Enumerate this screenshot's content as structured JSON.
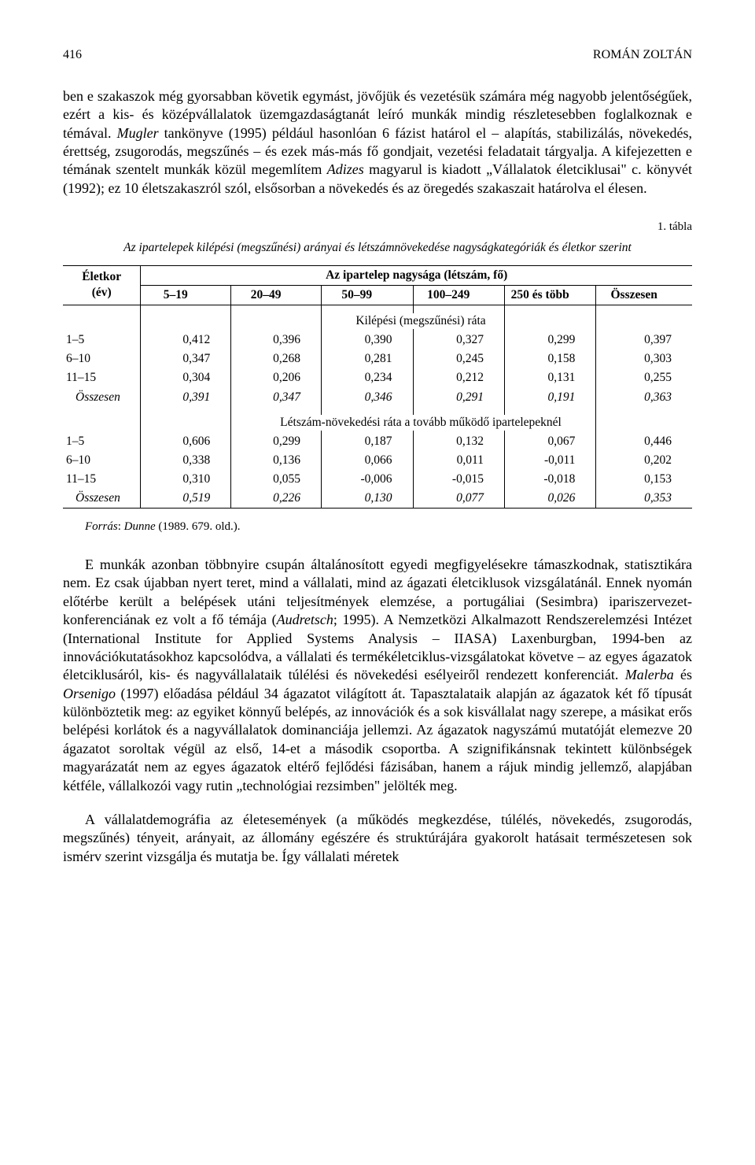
{
  "header": {
    "page_num": "416",
    "author": "ROMÁN ZOLTÁN"
  },
  "para1": "ben e szakaszok még gyorsabban követik egymást, jövőjük és vezetésük számára még nagyobb jelentőségűek, ezért a kis- és középvállalatok üzemgazdaságtanát leíró munkák mindig részletesebben foglalkoznak e témával. <i>Mugler</i> tankönyve (1995) például hasonlóan 6 fázist határol el – alapítás, stabilizálás, növekedés, érettség, zsugorodás, megszűnés – és ezek más-más fő gondjait, vezetési feladatait tárgyalja. A kifejezetten e témának szentelt munkák közül megemlítem <i>Adizes</i> magyarul is kiadott „Vállalatok életciklusai\" c. könyvét (1992); ez 10 életszakaszról szól, elsősorban a növekedés és az öregedés szakaszait határolva el élesen.",
  "table": {
    "num": "1. tábla",
    "title": "Az ipartelepek kilépési (megszűnési) arányai és létszámnövekedése nagyságkategóriák és életkor szerint",
    "col_age": "Életkor\n(év)",
    "col_header_top": "Az ipartelep nagysága (létszám, fő)",
    "cols": [
      "5–19",
      "20–49",
      "50–99",
      "100–249",
      "250 és több",
      "Összesen"
    ],
    "section1": "Kilépési (megszűnési) ráta",
    "rows1": [
      {
        "age": "1–5",
        "v": [
          "0,412",
          "0,396",
          "0,390",
          "0,327",
          "0,299",
          "0,397"
        ]
      },
      {
        "age": "6–10",
        "v": [
          "0,347",
          "0,268",
          "0,281",
          "0,245",
          "0,158",
          "0,303"
        ]
      },
      {
        "age": "11–15",
        "v": [
          "0,304",
          "0,206",
          "0,234",
          "0,212",
          "0,131",
          "0,255"
        ]
      },
      {
        "age": "Összesen",
        "v": [
          "0,391",
          "0,347",
          "0,346",
          "0,291",
          "0,191",
          "0,363"
        ],
        "italic": true
      }
    ],
    "section2": "Létszám-növekedési ráta a tovább működő ipartelepeknél",
    "rows2": [
      {
        "age": "1–5",
        "v": [
          "0,606",
          "0,299",
          "0,187",
          "0,132",
          "0,067",
          "0,446"
        ]
      },
      {
        "age": "6–10",
        "v": [
          "0,338",
          "0,136",
          "0,066",
          "0,011",
          "-0,011",
          "0,202"
        ]
      },
      {
        "age": "11–15",
        "v": [
          "0,310",
          "0,055",
          "-0,006",
          "-0,015",
          "-0,018",
          "0,153"
        ]
      },
      {
        "age": "Összesen",
        "v": [
          "0,519",
          "0,226",
          "0,130",
          "0,077",
          "0,026",
          "0,353"
        ],
        "italic": true
      }
    ]
  },
  "source": "<i>Forrás</i>: <i>Dunne</i> (1989. 679. old.).",
  "para2": "E munkák azonban többnyire csupán általánosított egyedi megfigyelésekre támaszkodnak, statisztikára nem. Ez csak újabban nyert teret, mind a vállalati, mind az ágazati életciklusok vizsgálatánál. Ennek nyomán előtérbe került a belépések utáni teljesítmények elemzése, a portugáliai (Sesimbra) ipariszervezet-konferenciának ez volt a fő témája (<i>Audretsch</i>; 1995). A Nemzetközi Alkalmazott Rendszerelemzési Intézet (International Institute for Applied Systems Analysis – IIASA) Laxenburgban, 1994-ben az innovációkutatásokhoz kapcsolódva, a vállalati és termékéletciklus-vizsgálatokat követve – az egyes ágazatok életciklusáról, kis- és nagyvállalataik túlélési és növekedési esélyeiről rendezett konferenciát. <i>Malerba</i> és <i>Orsenigo</i> (1997) előadása például 34 ágazatot világított át. Tapasztalataik alapján az ágazatok két fő típusát különböztetik meg: az egyiket könnyű belépés, az innovációk és a sok kisvállalat nagy szerepe, a másikat erős belépési korlátok és a nagyvállalatok dominanciája jellemzi. Az ágazatok nagyszámú mutatóját elemezve 20 ágazatot soroltak végül az első, 14-et a második csoportba. A szignifikánsnak tekintett különbségek magyarázatát nem az egyes ágazatok eltérő fejlődési fázisában, hanem a rájuk mindig jellemző, alapjában kétféle, vállalkozói vagy rutin „technológiai rezsimben\" jelölték meg.",
  "para3": "A vállalatdemográfia az életesemények (a működés megkezdése, túlélés, növekedés, zsugorodás, megszűnés) tényeit, arányait, az állomány egészére és struktúrájára gyakorolt hatásait természetesen sok ismérv szerint vizsgálja és mutatja be. Így vállalati méretek"
}
